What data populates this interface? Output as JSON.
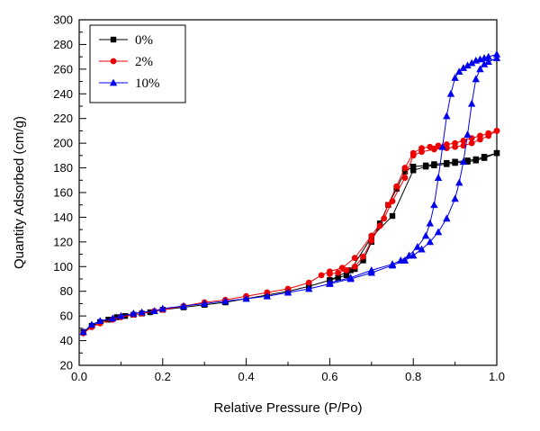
{
  "chart_data": {
    "type": "line",
    "title": "",
    "xlabel": "Relative Pressure (P/Po)",
    "ylabel": "Quantity Adsorbed (cm/g)",
    "xlim": [
      0.0,
      1.0
    ],
    "ylim": [
      20,
      300
    ],
    "x_tick_values": [
      0.0,
      0.2,
      0.4,
      0.6,
      0.8,
      1.0
    ],
    "x_tick_labels": [
      "0.0",
      "0.2",
      "0.4",
      "0.6",
      "0.8",
      "1.0"
    ],
    "x_minor_step": 0.1,
    "y_major_step": 20,
    "y_minor_step": 10,
    "grid": false,
    "legend_position": "top-left",
    "series": [
      {
        "name": "0%",
        "color": "#000000",
        "marker": "square",
        "branches": {
          "adsorption": [
            [
              0.01,
              47
            ],
            [
              0.03,
              52
            ],
            [
              0.05,
              55
            ],
            [
              0.07,
              57
            ],
            [
              0.09,
              59
            ],
            [
              0.11,
              60
            ],
            [
              0.13,
              61
            ],
            [
              0.15,
              62
            ],
            [
              0.17,
              63
            ],
            [
              0.2,
              65
            ],
            [
              0.25,
              67
            ],
            [
              0.3,
              69
            ],
            [
              0.35,
              71
            ],
            [
              0.4,
              74
            ],
            [
              0.45,
              77
            ],
            [
              0.5,
              80
            ],
            [
              0.55,
              84
            ],
            [
              0.6,
              89
            ],
            [
              0.65,
              97
            ],
            [
              0.7,
              124
            ],
            [
              0.75,
              141
            ],
            [
              0.8,
              178
            ],
            [
              0.83,
              181
            ],
            [
              0.85,
              182
            ],
            [
              0.88,
              183
            ],
            [
              0.9,
              184
            ],
            [
              0.93,
              185
            ],
            [
              0.95,
              186
            ],
            [
              0.97,
              188
            ],
            [
              1.0,
              192
            ]
          ],
          "desorption": [
            [
              1.0,
              192
            ],
            [
              0.97,
              189
            ],
            [
              0.95,
              187
            ],
            [
              0.93,
              186
            ],
            [
              0.9,
              185
            ],
            [
              0.88,
              184
            ],
            [
              0.85,
              183
            ],
            [
              0.83,
              182
            ],
            [
              0.8,
              181
            ],
            [
              0.78,
              177
            ],
            [
              0.76,
              163
            ],
            [
              0.74,
              150
            ],
            [
              0.72,
              135
            ],
            [
              0.7,
              120
            ],
            [
              0.68,
              105
            ],
            [
              0.66,
              98
            ],
            [
              0.64,
              93
            ],
            [
              0.62,
              91
            ],
            [
              0.6,
              89
            ]
          ]
        }
      },
      {
        "name": "2%",
        "color": "#ee0000",
        "marker": "circle",
        "branches": {
          "adsorption": [
            [
              0.01,
              46
            ],
            [
              0.03,
              51
            ],
            [
              0.05,
              54
            ],
            [
              0.08,
              57
            ],
            [
              0.1,
              59
            ],
            [
              0.13,
              61
            ],
            [
              0.15,
              62
            ],
            [
              0.18,
              64
            ],
            [
              0.2,
              65
            ],
            [
              0.25,
              68
            ],
            [
              0.3,
              71
            ],
            [
              0.35,
              73
            ],
            [
              0.4,
              76
            ],
            [
              0.45,
              79
            ],
            [
              0.5,
              82
            ],
            [
              0.55,
              87
            ],
            [
              0.58,
              93
            ],
            [
              0.6,
              96
            ],
            [
              0.63,
              99
            ],
            [
              0.66,
              107
            ],
            [
              0.7,
              125
            ],
            [
              0.73,
              139
            ],
            [
              0.75,
              153
            ],
            [
              0.78,
              172
            ],
            [
              0.8,
              190
            ],
            [
              0.82,
              193
            ],
            [
              0.85,
              195
            ],
            [
              0.88,
              196
            ],
            [
              0.9,
              197
            ],
            [
              0.92,
              198
            ],
            [
              0.94,
              200
            ],
            [
              0.96,
              203
            ],
            [
              0.98,
              206
            ],
            [
              1.0,
              210
            ]
          ],
          "desorption": [
            [
              1.0,
              210
            ],
            [
              0.98,
              208
            ],
            [
              0.96,
              206
            ],
            [
              0.94,
              204
            ],
            [
              0.92,
              202
            ],
            [
              0.9,
              200
            ],
            [
              0.88,
              199
            ],
            [
              0.86,
              198
            ],
            [
              0.84,
              197
            ],
            [
              0.82,
              196
            ],
            [
              0.8,
              192
            ],
            [
              0.78,
              180
            ],
            [
              0.76,
              165
            ],
            [
              0.74,
              150
            ],
            [
              0.72,
              133
            ],
            [
              0.7,
              121
            ],
            [
              0.68,
              108
            ],
            [
              0.66,
              100
            ],
            [
              0.64,
              97
            ],
            [
              0.62,
              95
            ],
            [
              0.6,
              94
            ]
          ]
        }
      },
      {
        "name": "10%",
        "color": "#0000ee",
        "marker": "triangle",
        "branches": {
          "adsorption": [
            [
              0.01,
              47
            ],
            [
              0.03,
              53
            ],
            [
              0.05,
              56
            ],
            [
              0.08,
              58
            ],
            [
              0.1,
              60
            ],
            [
              0.13,
              62
            ],
            [
              0.15,
              63
            ],
            [
              0.18,
              64
            ],
            [
              0.2,
              66
            ],
            [
              0.25,
              68
            ],
            [
              0.3,
              70
            ],
            [
              0.35,
              72
            ],
            [
              0.4,
              74
            ],
            [
              0.45,
              76
            ],
            [
              0.5,
              79
            ],
            [
              0.55,
              82
            ],
            [
              0.6,
              86
            ],
            [
              0.65,
              90
            ],
            [
              0.7,
              95
            ],
            [
              0.75,
              101
            ],
            [
              0.78,
              105
            ],
            [
              0.8,
              109
            ],
            [
              0.82,
              114
            ],
            [
              0.84,
              120
            ],
            [
              0.86,
              128
            ],
            [
              0.88,
              139
            ],
            [
              0.9,
              155
            ],
            [
              0.91,
              168
            ],
            [
              0.92,
              185
            ],
            [
              0.93,
              207
            ],
            [
              0.94,
              232
            ],
            [
              0.95,
              252
            ],
            [
              0.96,
              260
            ],
            [
              0.97,
              264
            ],
            [
              0.98,
              266
            ],
            [
              1.0,
              269
            ]
          ],
          "desorption": [
            [
              1.0,
              272
            ],
            [
              0.98,
              270
            ],
            [
              0.97,
              269
            ],
            [
              0.96,
              268
            ],
            [
              0.95,
              267
            ],
            [
              0.94,
              265
            ],
            [
              0.93,
              263
            ],
            [
              0.92,
              261
            ],
            [
              0.91,
              258
            ],
            [
              0.9,
              253
            ],
            [
              0.89,
              240
            ],
            [
              0.88,
              222
            ],
            [
              0.87,
              197
            ],
            [
              0.86,
              172
            ],
            [
              0.85,
              150
            ],
            [
              0.84,
              135
            ],
            [
              0.83,
              125
            ],
            [
              0.81,
              116
            ],
            [
              0.79,
              109
            ],
            [
              0.77,
              105
            ],
            [
              0.75,
              102
            ],
            [
              0.7,
              97
            ],
            [
              0.65,
              91
            ],
            [
              0.6,
              87
            ]
          ]
        }
      }
    ]
  }
}
